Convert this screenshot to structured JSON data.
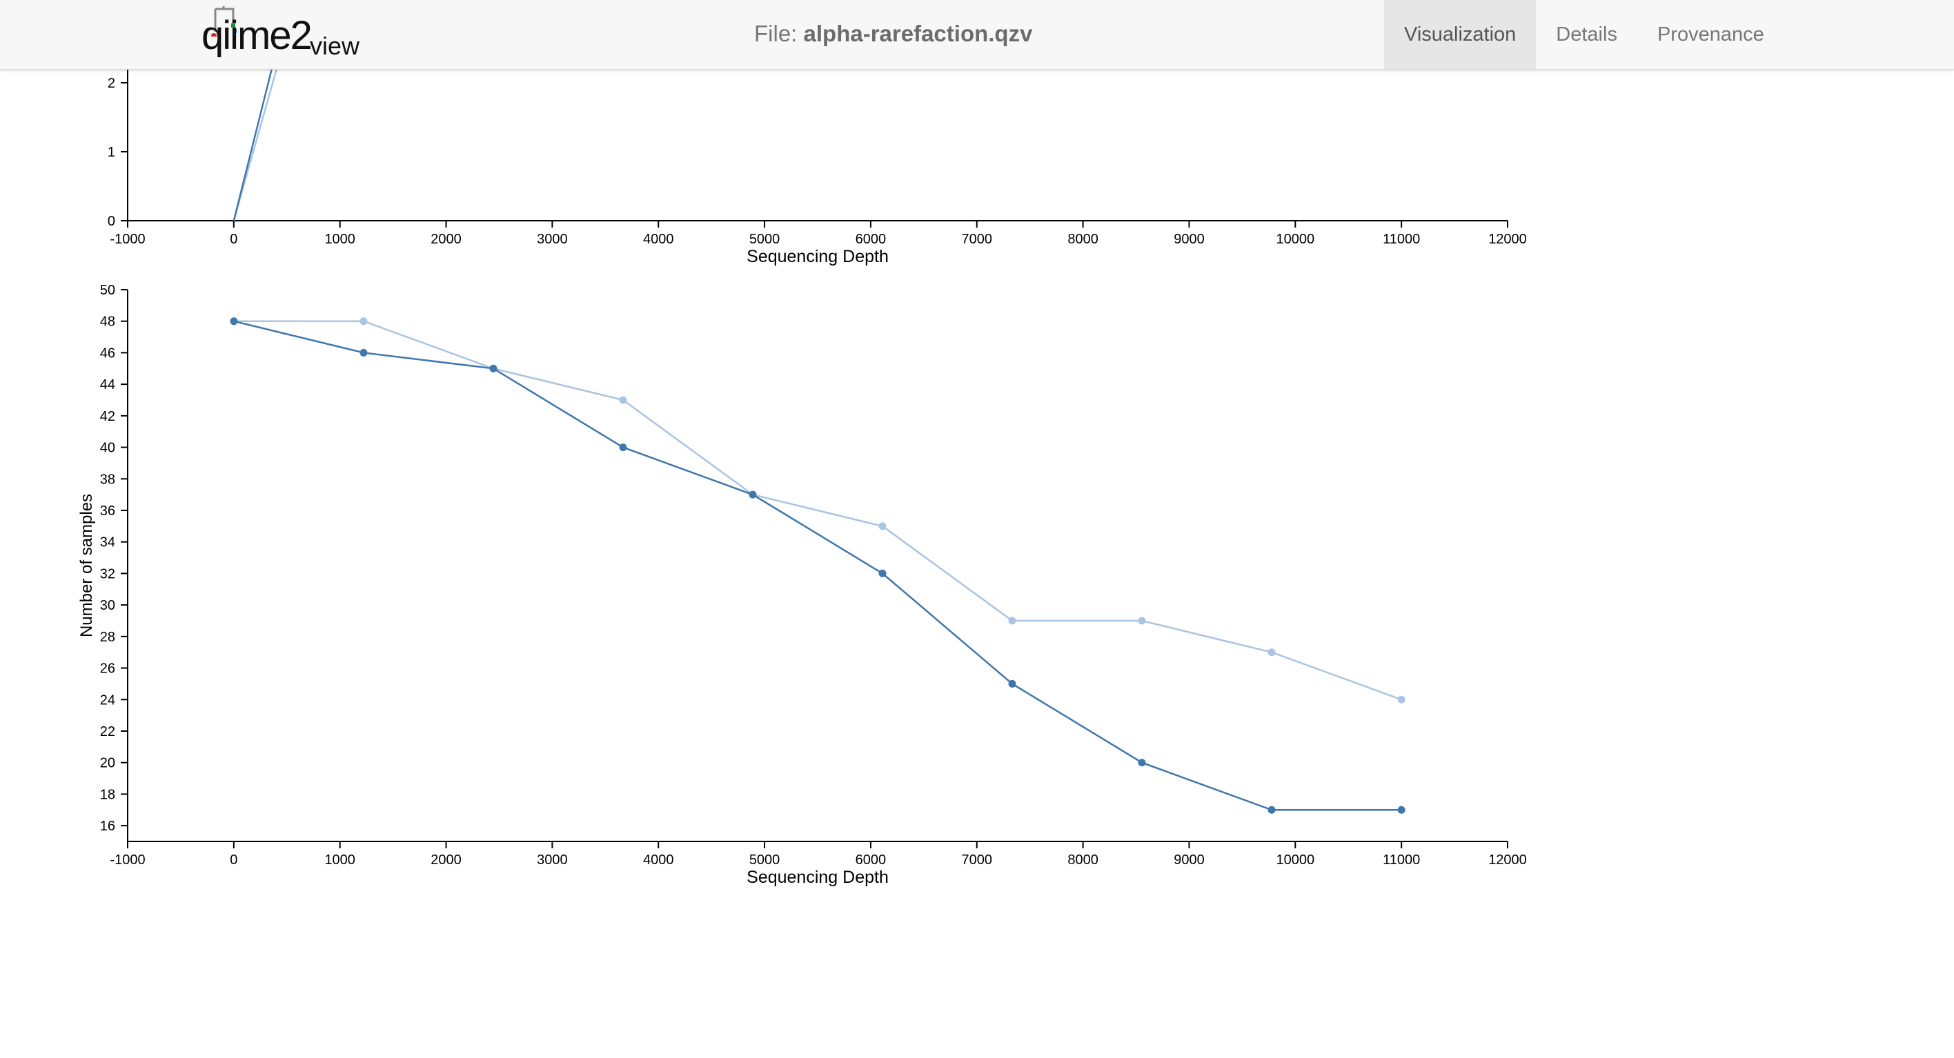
{
  "header": {
    "logo": {
      "word_main": "qiime2",
      "word_sub": "view"
    },
    "file_label": "File:",
    "file_name": "alpha-rarefaction.qzv",
    "tabs": [
      {
        "label": "Visualization",
        "active": true
      },
      {
        "label": "Details",
        "active": false
      },
      {
        "label": "Provenance",
        "active": false
      }
    ]
  },
  "colors": {
    "series_dark": "#3f77ad",
    "series_light": "#a9c5e2",
    "header_bg": "#f7f7f7",
    "active_tab_bg": "#e6e6e6"
  },
  "chart_data": [
    {
      "type": "line",
      "xlabel": "Sequencing Depth",
      "ylabel": "",
      "xlim": [
        -1000,
        12000
      ],
      "x_ticks": [
        -1000,
        0,
        1000,
        2000,
        3000,
        4000,
        5000,
        6000,
        7000,
        8000,
        9000,
        10000,
        11000,
        12000
      ],
      "y_ticks": [
        0,
        1,
        2
      ],
      "note": "partially scrolled out of view; only bottom of chart visible",
      "series": [
        {
          "color": "#a9c5e2",
          "x": [
            0,
            440
          ],
          "y": [
            0,
            2.4
          ]
        },
        {
          "color": "#3f77ad",
          "x": [
            0,
            390
          ],
          "y": [
            0,
            2.4
          ]
        }
      ]
    },
    {
      "type": "line",
      "xlabel": "Sequencing Depth",
      "ylabel": "Number of samples",
      "xlim": [
        -1000,
        12000
      ],
      "ylim": [
        15,
        50
      ],
      "x_ticks": [
        -1000,
        0,
        1000,
        2000,
        3000,
        4000,
        5000,
        6000,
        7000,
        8000,
        9000,
        10000,
        11000,
        12000
      ],
      "y_ticks": [
        16,
        18,
        20,
        22,
        24,
        26,
        28,
        30,
        32,
        34,
        36,
        38,
        40,
        42,
        44,
        46,
        48,
        50
      ],
      "x": [
        1,
        1223,
        2445,
        3667,
        4889,
        6111,
        7333,
        8555,
        9777,
        11000
      ],
      "series": [
        {
          "color": "#a9c5e2",
          "values": [
            48,
            48,
            45,
            43,
            37,
            35,
            29,
            29,
            27,
            24
          ]
        },
        {
          "color": "#3f77ad",
          "values": [
            48,
            46,
            45,
            40,
            37,
            32,
            25,
            20,
            17,
            17
          ]
        }
      ]
    }
  ]
}
